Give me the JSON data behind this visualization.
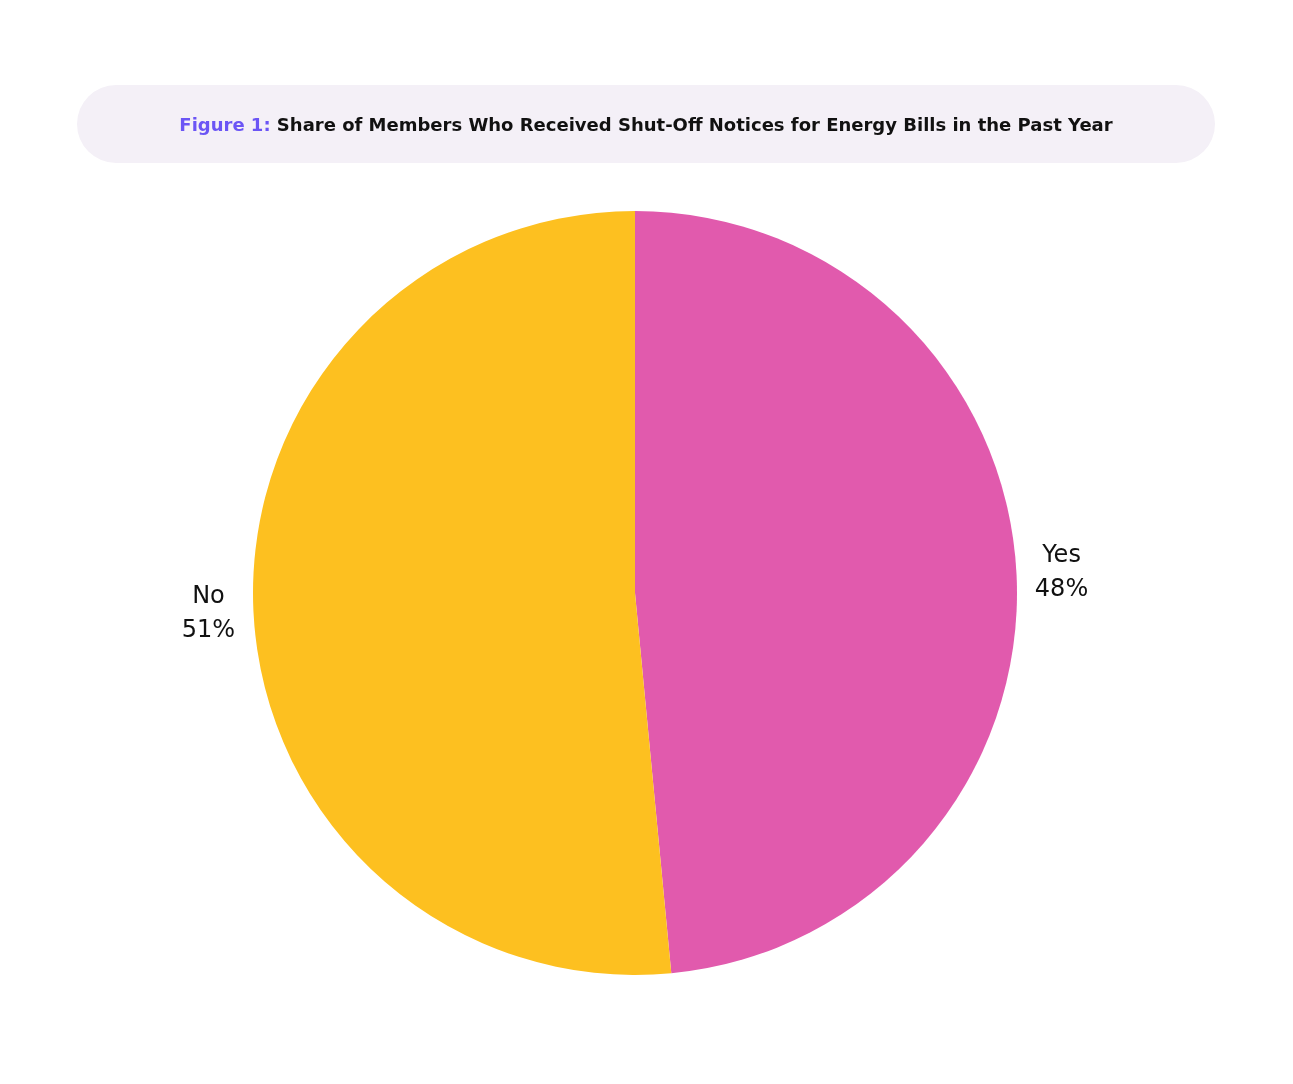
{
  "chart_data": {
    "type": "pie",
    "title": "Figure 1: Share of Members Who Received Shut-Off Notices for Energy Bills in the Past Year",
    "categories": [
      "Yes",
      "No"
    ],
    "values": [
      48,
      51
    ],
    "value_labels": [
      "48%",
      "51%"
    ],
    "colors": [
      "#e15aad",
      "#fdc020"
    ],
    "data_labels": true,
    "legend": false
  }
}
